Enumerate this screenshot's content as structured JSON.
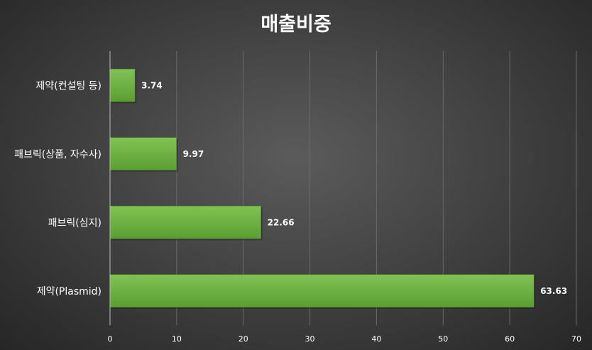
{
  "chart_data": {
    "type": "bar",
    "orientation": "horizontal",
    "title": "매출비중",
    "categories": [
      "제약(Plasmid)",
      "패브릭(심지)",
      "패브릭(상품, 자수사)",
      "제약(컨설팅 등)"
    ],
    "values": [
      63.63,
      22.66,
      9.97,
      3.74
    ],
    "xlim": [
      0,
      70
    ],
    "xticks": [
      0,
      10,
      20,
      30,
      40,
      50,
      60,
      70
    ],
    "grid": true,
    "legend": "none",
    "bar_color": "#6ab03e"
  }
}
